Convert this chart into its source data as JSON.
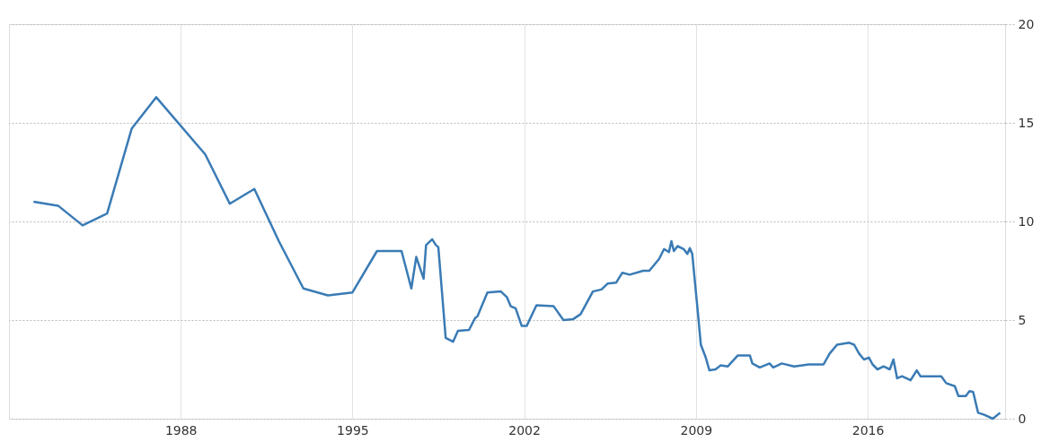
{
  "chart_data": {
    "type": "line",
    "xlim": [
      1981,
      2021.6
    ],
    "xticks": [
      1988,
      1995,
      2002,
      2009,
      2016
    ],
    "ylim": [
      0,
      20
    ],
    "yticks": [
      0,
      5,
      10,
      15,
      20
    ],
    "grid": true,
    "marker": "none",
    "line_style": "solid",
    "series": [
      {
        "color": "#3a7bb5",
        "x": [
          1982,
          1983,
          1984,
          1985,
          1986,
          1987,
          1989,
          1990,
          1991,
          1992,
          1993,
          1994,
          1995,
          1996,
          1997,
          1997.4,
          1997.6,
          1997.9,
          1998.0,
          1998.25,
          1998.4,
          1998.5,
          1998.8,
          1999.1,
          1999.3,
          1999.75,
          2000.0,
          2000.1,
          2000.5,
          2001.05,
          2001.3,
          2001.45,
          2001.65,
          2001.9,
          2002.1,
          2002.5,
          2003.2,
          2003.6,
          2004.0,
          2004.3,
          2004.8,
          2005.15,
          2005.4,
          2005.75,
          2006.0,
          2006.3,
          2006.85,
          2007.1,
          2007.5,
          2007.7,
          2007.9,
          2008.0,
          2008.1,
          2008.25,
          2008.5,
          2008.65,
          2008.75,
          2008.85,
          2009.1,
          2009.2,
          2009.4,
          2009.55,
          2009.8,
          2010.0,
          2010.3,
          2010.7,
          2011.2,
          2011.3,
          2011.6,
          2012.0,
          2012.15,
          2012.5,
          2013.0,
          2013.6,
          2014.2,
          2014.45,
          2014.75,
          2015.25,
          2015.45,
          2015.65,
          2015.85,
          2016.05,
          2016.2,
          2016.4,
          2016.65,
          2016.9,
          2017.05,
          2017.2,
          2017.4,
          2017.75,
          2018.0,
          2018.15,
          2018.55,
          2019.0,
          2019.2,
          2019.55,
          2019.7,
          2020.0,
          2020.15,
          2020.3,
          2020.5,
          2020.75,
          2021.1,
          2021.4
        ],
        "values": [
          11.0,
          10.8,
          9.8,
          10.4,
          14.7,
          16.3,
          13.4,
          10.9,
          11.65,
          9.0,
          6.6,
          6.25,
          6.4,
          8.5,
          8.5,
          6.6,
          8.2,
          7.1,
          8.8,
          9.1,
          8.8,
          8.7,
          4.1,
          3.9,
          4.45,
          4.5,
          5.1,
          5.2,
          6.4,
          6.45,
          6.15,
          5.7,
          5.6,
          4.7,
          4.7,
          5.75,
          5.7,
          5.0,
          5.05,
          5.3,
          6.45,
          6.55,
          6.85,
          6.9,
          7.4,
          7.3,
          7.5,
          7.5,
          8.1,
          8.6,
          8.45,
          9.0,
          8.5,
          8.75,
          8.6,
          8.35,
          8.65,
          8.35,
          5.1,
          3.75,
          3.1,
          2.45,
          2.5,
          2.7,
          2.65,
          3.2,
          3.2,
          2.8,
          2.6,
          2.8,
          2.6,
          2.8,
          2.65,
          2.75,
          2.75,
          3.3,
          3.75,
          3.85,
          3.75,
          3.3,
          3.0,
          3.1,
          2.75,
          2.5,
          2.65,
          2.5,
          3.0,
          2.05,
          2.15,
          1.95,
          2.45,
          2.15,
          2.15,
          2.15,
          1.8,
          1.65,
          1.15,
          1.15,
          1.4,
          1.35,
          0.3,
          0.2,
          0.0,
          0.3
        ]
      }
    ]
  }
}
